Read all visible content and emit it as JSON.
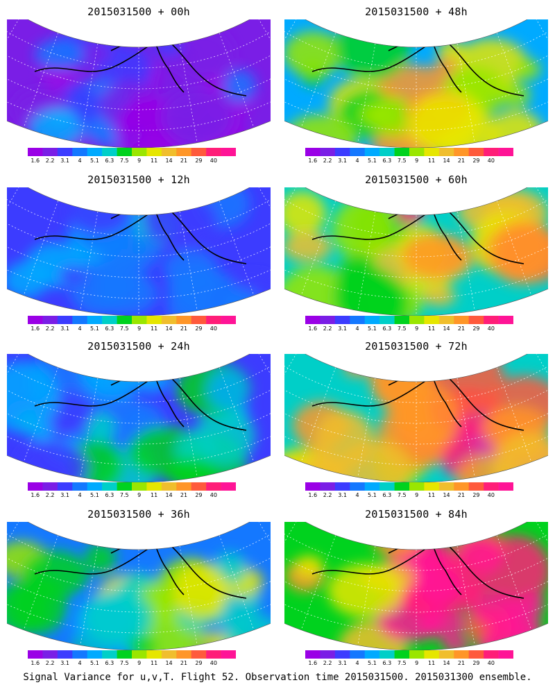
{
  "panels": [
    {
      "title": "2015031500 + 00h",
      "hours": 0
    },
    {
      "title": "2015031500 + 48h",
      "hours": 48
    },
    {
      "title": "2015031500 + 12h",
      "hours": 12
    },
    {
      "title": "2015031500 + 60h",
      "hours": 60
    },
    {
      "title": "2015031500 + 24h",
      "hours": 24
    },
    {
      "title": "2015031500 + 72h",
      "hours": 72
    },
    {
      "title": "2015031500 + 36h",
      "hours": 36
    },
    {
      "title": "2015031500 + 84h",
      "hours": 84
    }
  ],
  "colorbar": {
    "ticks": [
      "1.6",
      "2.2",
      "3.1",
      "4",
      "5.1",
      "6.3",
      "7.5",
      "9",
      "11",
      "14",
      "21",
      "29",
      "40"
    ],
    "colors": [
      "#9a00e6",
      "#7a1ee6",
      "#3c3cff",
      "#1478ff",
      "#00aaff",
      "#00cfc8",
      "#00d21e",
      "#9ae600",
      "#e6e600",
      "#f0be2d",
      "#ff9628",
      "#ff5a3c",
      "#ff1e78",
      "#ff1496"
    ]
  },
  "footer": "Signal Variance for u,v,T. Flight 52. Observation time 2015031500. 2015031300 ensemble."
}
